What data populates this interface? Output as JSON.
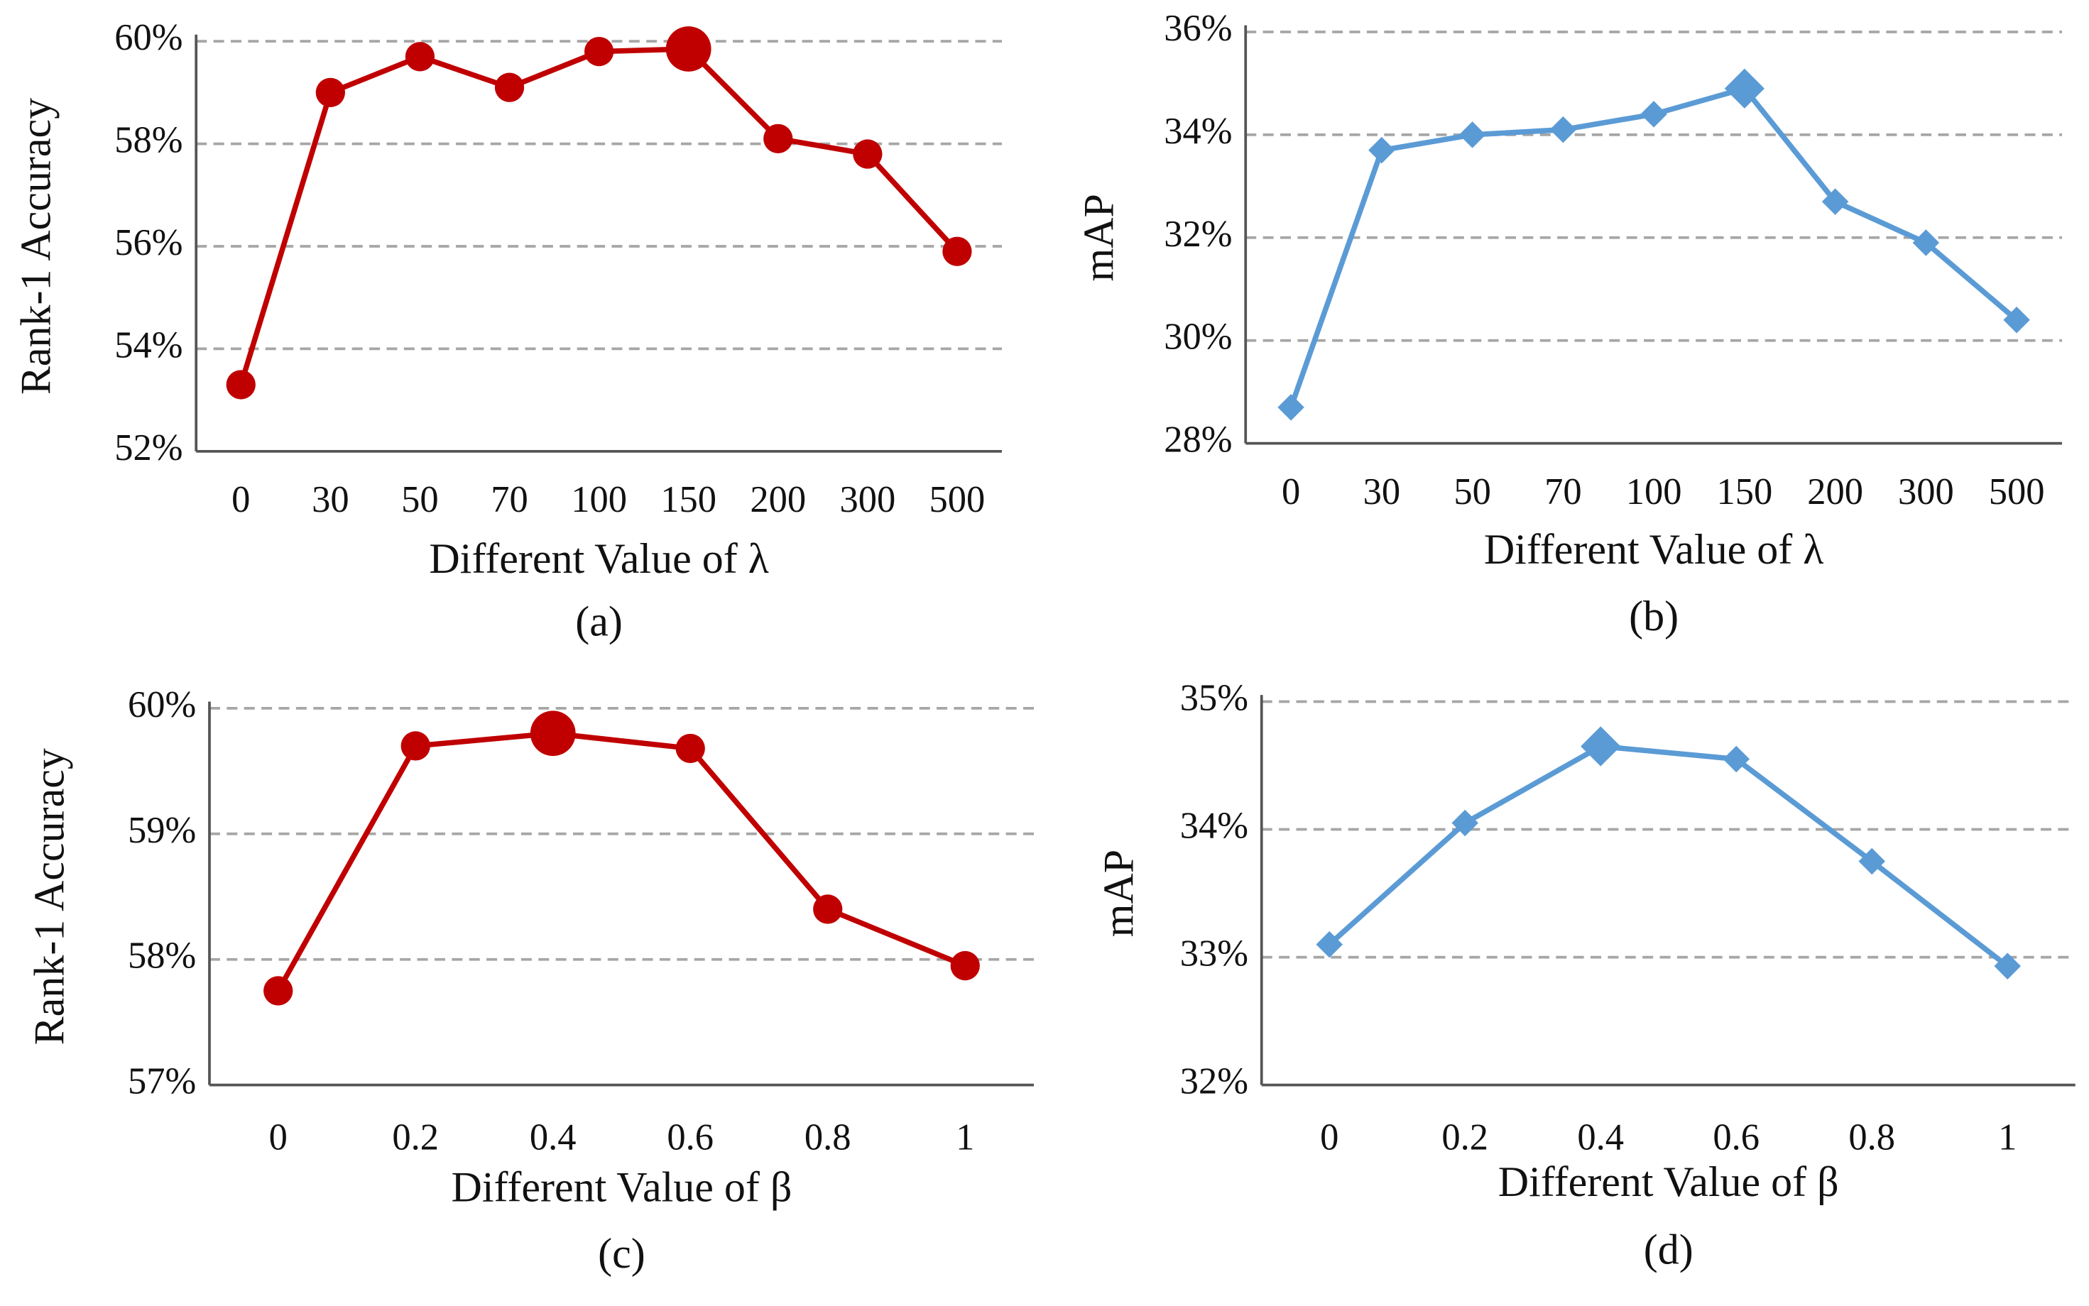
{
  "chart_data": [
    {
      "type": "line",
      "marker": "circle",
      "color": "#c00000",
      "grid": true,
      "ylabel": "Rank-1  Accuracy",
      "xlabel": "Different Value of λ",
      "caption": "(a)",
      "categories": [
        "0",
        "30",
        "50",
        "70",
        "100",
        "150",
        "200",
        "300",
        "500"
      ],
      "values": [
        53.3,
        59.0,
        59.7,
        59.1,
        59.8,
        59.85,
        58.1,
        57.8,
        55.9
      ],
      "ylim": [
        52,
        60
      ],
      "yticks": [
        {
          "value": 52,
          "label": "52%"
        },
        {
          "value": 54,
          "label": "54%"
        },
        {
          "value": 56,
          "label": "56%"
        },
        {
          "value": 58,
          "label": "58%"
        },
        {
          "value": 60,
          "label": "60%"
        }
      ]
    },
    {
      "type": "line",
      "marker": "diamond",
      "color": "#5b9bd5",
      "grid": true,
      "ylabel": "mAP",
      "xlabel": "Different Value of λ",
      "caption": "(b)",
      "categories": [
        "0",
        "30",
        "50",
        "70",
        "100",
        "150",
        "200",
        "300",
        "500"
      ],
      "values": [
        28.7,
        33.7,
        34.0,
        34.1,
        34.4,
        34.9,
        32.7,
        31.9,
        30.4
      ],
      "ylim": [
        28,
        36
      ],
      "yticks": [
        {
          "value": 28,
          "label": "28%"
        },
        {
          "value": 30,
          "label": "30%"
        },
        {
          "value": 32,
          "label": "32%"
        },
        {
          "value": 34,
          "label": "34%"
        },
        {
          "value": 36,
          "label": "36%"
        }
      ]
    },
    {
      "type": "line",
      "marker": "circle",
      "color": "#c00000",
      "grid": true,
      "ylabel": "Rank-1  Accuracy",
      "xlabel": "Different Value of β",
      "caption": "(c)",
      "categories": [
        "0",
        "0.2",
        "0.4",
        "0.6",
        "0.8",
        "1"
      ],
      "values": [
        57.75,
        59.7,
        59.8,
        59.68,
        58.4,
        57.95
      ],
      "ylim": [
        57,
        60
      ],
      "yticks": [
        {
          "value": 57,
          "label": "57%"
        },
        {
          "value": 58,
          "label": "58%"
        },
        {
          "value": 59,
          "label": "59%"
        },
        {
          "value": 60,
          "label": "60%"
        }
      ]
    },
    {
      "type": "line",
      "marker": "diamond",
      "color": "#5b9bd5",
      "grid": true,
      "ylabel": "mAP",
      "xlabel": "Different Value of β",
      "caption": "(d)",
      "categories": [
        "0",
        "0.2",
        "0.4",
        "0.6",
        "0.8",
        "1"
      ],
      "values": [
        33.1,
        34.05,
        34.65,
        34.55,
        33.75,
        32.93
      ],
      "ylim": [
        32,
        35
      ],
      "yticks": [
        {
          "value": 32,
          "label": "32%"
        },
        {
          "value": 33,
          "label": "33%"
        },
        {
          "value": 34,
          "label": "34%"
        },
        {
          "value": 35,
          "label": "35%"
        }
      ]
    }
  ]
}
